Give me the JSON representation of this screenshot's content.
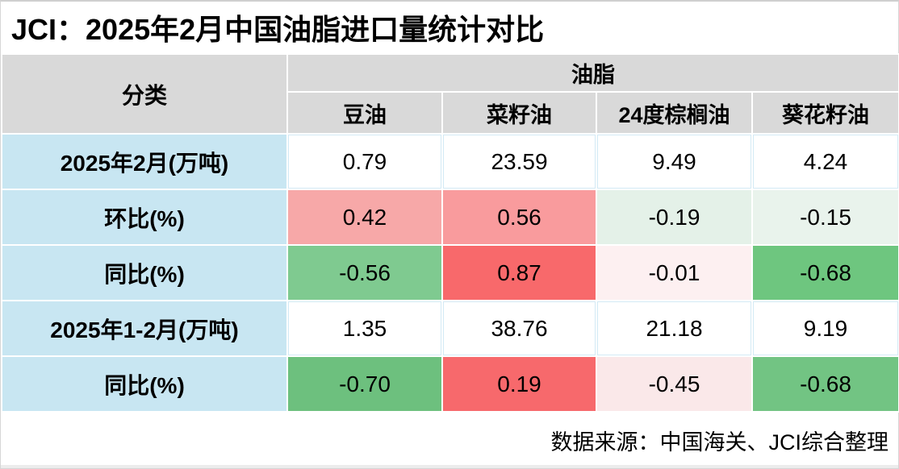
{
  "title": "JCI：2025年2月中国油脂进口量统计对比",
  "source_note": "数据来源：中国海关、JCI综合整理",
  "table": {
    "corner_header": "分类",
    "group_header": "油脂",
    "columns": [
      "豆油",
      "菜籽油",
      "24度棕榈油",
      "葵花籽油"
    ],
    "rows": [
      {
        "label": "2025年2月(万吨)",
        "values": [
          "0.79",
          "23.59",
          "9.49",
          "4.24"
        ],
        "colors": [
          "#ffffff",
          "#ffffff",
          "#ffffff",
          "#ffffff"
        ]
      },
      {
        "label": "环比(%)",
        "values": [
          "0.42",
          "0.56",
          "-0.19",
          "-0.15"
        ],
        "colors": [
          "#f7a8a8",
          "#f99b9d",
          "#e4f1e8",
          "#e9f3ec"
        ]
      },
      {
        "label": "同比(%)",
        "values": [
          "-0.56",
          "0.87",
          "-0.01",
          "-0.68"
        ],
        "colors": [
          "#7fca90",
          "#f8696b",
          "#fdf0f1",
          "#6ec67f"
        ]
      },
      {
        "label": "2025年1-2月(万吨)",
        "values": [
          "1.35",
          "38.76",
          "21.18",
          "9.19"
        ],
        "colors": [
          "#ffffff",
          "#ffffff",
          "#ffffff",
          "#ffffff"
        ]
      },
      {
        "label": "同比(%)",
        "values": [
          "-0.70",
          "0.19",
          "-0.45",
          "-0.68"
        ],
        "colors": [
          "#6dc07e",
          "#f7696c",
          "#fae8e9",
          "#72c483"
        ]
      }
    ]
  },
  "colors": {
    "header_bg": "#d9d9d9",
    "row_label_bg": "#c8e6f2",
    "grid_line_filled": "#ffffff",
    "grid_line_white_cell": "#d3eaf5",
    "strong_red": "#f8696b",
    "strong_green": "#6dc07e",
    "text": "#000000"
  },
  "chart_data": {
    "type": "table",
    "title": "JCI：2025年2月中国油脂进口量统计对比",
    "column_group_header": "油脂",
    "row_group_header": "分类",
    "columns": [
      "豆油",
      "菜籽油",
      "24度棕榈油",
      "葵花籽油"
    ],
    "rows": [
      {
        "label": "2025年2月(万吨)",
        "values": [
          0.79,
          23.59,
          9.49,
          4.24
        ]
      },
      {
        "label": "环比(%)",
        "values": [
          0.42,
          0.56,
          -0.19,
          -0.15
        ]
      },
      {
        "label": "同比(%)",
        "values": [
          -0.56,
          0.87,
          -0.01,
          -0.68
        ]
      },
      {
        "label": "2025年1-2月(万吨)",
        "values": [
          1.35,
          38.76,
          21.18,
          9.19
        ]
      },
      {
        "label": "同比(%)",
        "values": [
          -0.7,
          0.19,
          -0.45,
          -0.68
        ]
      }
    ],
    "conditional_formatting": "red = positive change, green = negative change (3-color scale)",
    "source": "数据来源：中国海关、JCI综合整理"
  }
}
